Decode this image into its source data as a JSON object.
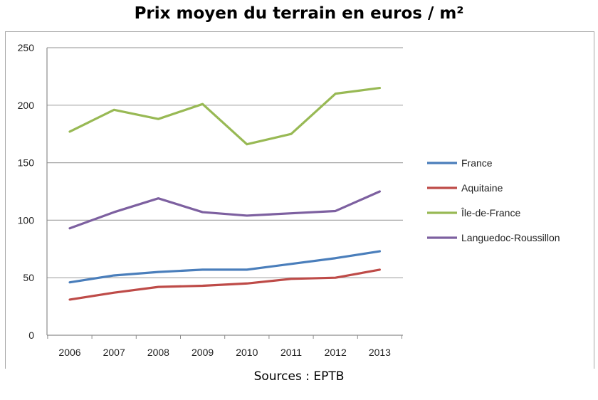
{
  "chart_data": {
    "type": "line",
    "title": "Prix moyen du terrain en euros / m²",
    "xlabel": "",
    "ylabel": "",
    "x": [
      "2006",
      "2007",
      "2008",
      "2009",
      "2010",
      "2011",
      "2012",
      "2013"
    ],
    "ylim": [
      0,
      250
    ],
    "yticks": [
      0,
      50,
      100,
      150,
      200,
      250
    ],
    "grid": true,
    "legend_position": "right",
    "series": [
      {
        "name": "France",
        "color": "#4a7ebb",
        "values": [
          46,
          52,
          55,
          57,
          57,
          62,
          67,
          73
        ]
      },
      {
        "name": "Aquitaine",
        "color": "#be4b48",
        "values": [
          31,
          37,
          42,
          43,
          45,
          49,
          50,
          57
        ]
      },
      {
        "name": "Île-de-France",
        "color": "#98b954",
        "values": [
          177,
          196,
          188,
          201,
          166,
          175,
          210,
          215
        ]
      },
      {
        "name": "Languedoc-Roussillon",
        "color": "#7d60a0",
        "values": [
          93,
          107,
          119,
          107,
          104,
          106,
          108,
          125
        ]
      }
    ]
  },
  "source_text": "Sources : EPTB"
}
